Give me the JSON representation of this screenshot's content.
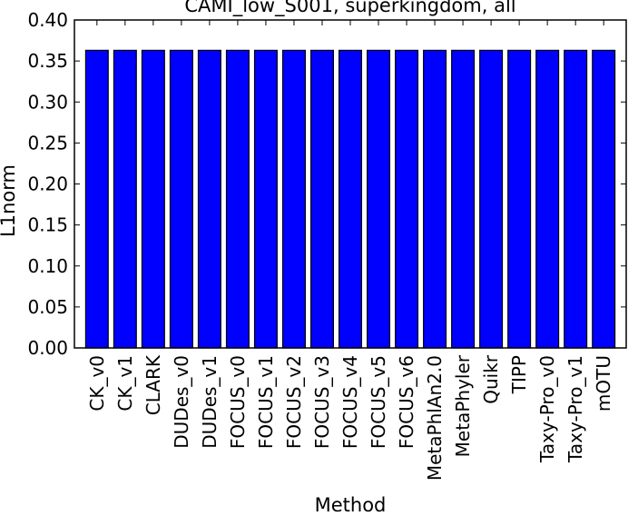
{
  "chart_data": {
    "type": "bar",
    "title": "CAMI_low_S001, superkingdom, all",
    "xlabel": "Method",
    "ylabel": "L1norm",
    "categories": [
      "CK_v0",
      "CK_v1",
      "CLARK",
      "DUDes_v0",
      "DUDes_v1",
      "FOCUS_v0",
      "FOCUS_v1",
      "FOCUS_v2",
      "FOCUS_v3",
      "FOCUS_v4",
      "FOCUS_v5",
      "FOCUS_v6",
      "MetaPhlAn2.0",
      "MetaPhyler",
      "Quikr",
      "TIPP",
      "Taxy-Pro_v0",
      "Taxy-Pro_v1",
      "mOTU"
    ],
    "values": [
      0.363,
      0.363,
      0.363,
      0.363,
      0.363,
      0.363,
      0.363,
      0.363,
      0.363,
      0.363,
      0.363,
      0.363,
      0.363,
      0.363,
      0.363,
      0.363,
      0.363,
      0.363,
      0.363
    ],
    "ylim": [
      0.0,
      0.4
    ],
    "yticks": [
      "0.00",
      "0.05",
      "0.10",
      "0.15",
      "0.20",
      "0.25",
      "0.30",
      "0.35",
      "0.40"
    ],
    "bar_color": "#0000ff",
    "edge_color": "#000000",
    "grid": false
  }
}
